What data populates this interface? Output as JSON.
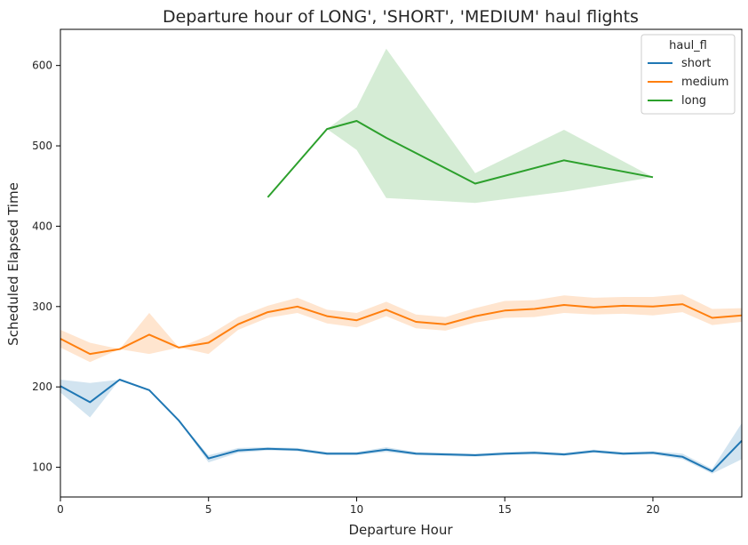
{
  "chart_data": {
    "type": "line",
    "title": "Departure hour of LONG', 'SHORT', 'MEDIUM' haul flights",
    "xlabel": "Departure Hour",
    "ylabel": "Scheduled Elapsed Time",
    "xlim": [
      0,
      23
    ],
    "ylim": [
      63,
      645
    ],
    "xticks": [
      0,
      5,
      10,
      15,
      20
    ],
    "yticks": [
      100,
      200,
      300,
      400,
      500,
      600
    ],
    "grid": false,
    "legend": {
      "title": "haul_fl",
      "position": "top-right"
    },
    "series": [
      {
        "name": "short",
        "color": "#1f77b4",
        "x": [
          0,
          1,
          2,
          3,
          4,
          5,
          6,
          7,
          8,
          9,
          10,
          11,
          12,
          13,
          14,
          15,
          16,
          17,
          18,
          19,
          20,
          21,
          22,
          23
        ],
        "y": [
          201,
          181,
          209,
          196,
          158,
          111,
          121,
          123,
          122,
          117,
          117,
          122,
          117,
          116,
          115,
          117,
          118,
          116,
          120,
          117,
          118,
          113,
          95,
          133
        ],
        "lower": [
          193,
          162,
          209,
          196,
          158,
          106,
          118,
          121,
          120,
          115,
          115,
          119,
          115,
          114,
          113,
          115,
          116,
          114,
          118,
          115,
          116,
          110,
          92,
          110
        ],
        "upper": [
          209,
          205,
          209,
          196,
          158,
          115,
          124,
          125,
          124,
          119,
          119,
          125,
          119,
          118,
          117,
          119,
          120,
          118,
          122,
          119,
          120,
          117,
          98,
          155
        ]
      },
      {
        "name": "medium",
        "color": "#ff7f0e",
        "x": [
          0,
          1,
          2,
          3,
          4,
          5,
          6,
          7,
          8,
          9,
          10,
          11,
          12,
          13,
          14,
          15,
          16,
          17,
          18,
          19,
          20,
          21,
          22,
          23
        ],
        "y": [
          260,
          241,
          247,
          265,
          249,
          255,
          278,
          293,
          300,
          288,
          283,
          296,
          281,
          278,
          288,
          295,
          297,
          302,
          299,
          301,
          300,
          303,
          286,
          289
        ],
        "lower": [
          249,
          231,
          247,
          241,
          249,
          241,
          271,
          286,
          292,
          279,
          274,
          288,
          273,
          270,
          280,
          286,
          287,
          292,
          290,
          291,
          289,
          293,
          277,
          281
        ],
        "upper": [
          271,
          255,
          247,
          292,
          249,
          264,
          287,
          301,
          311,
          296,
          292,
          306,
          290,
          287,
          298,
          307,
          308,
          314,
          311,
          312,
          312,
          315,
          297,
          298
        ]
      },
      {
        "name": "long",
        "color": "#2ca02c",
        "x": [
          7,
          9,
          10,
          11,
          14,
          17,
          20
        ],
        "y": [
          436,
          521,
          531,
          510,
          453,
          482,
          461
        ],
        "lower": [
          436,
          521,
          495,
          435,
          429,
          443,
          461
        ],
        "upper": [
          436,
          521,
          548,
          621,
          466,
          520,
          461
        ]
      }
    ]
  }
}
